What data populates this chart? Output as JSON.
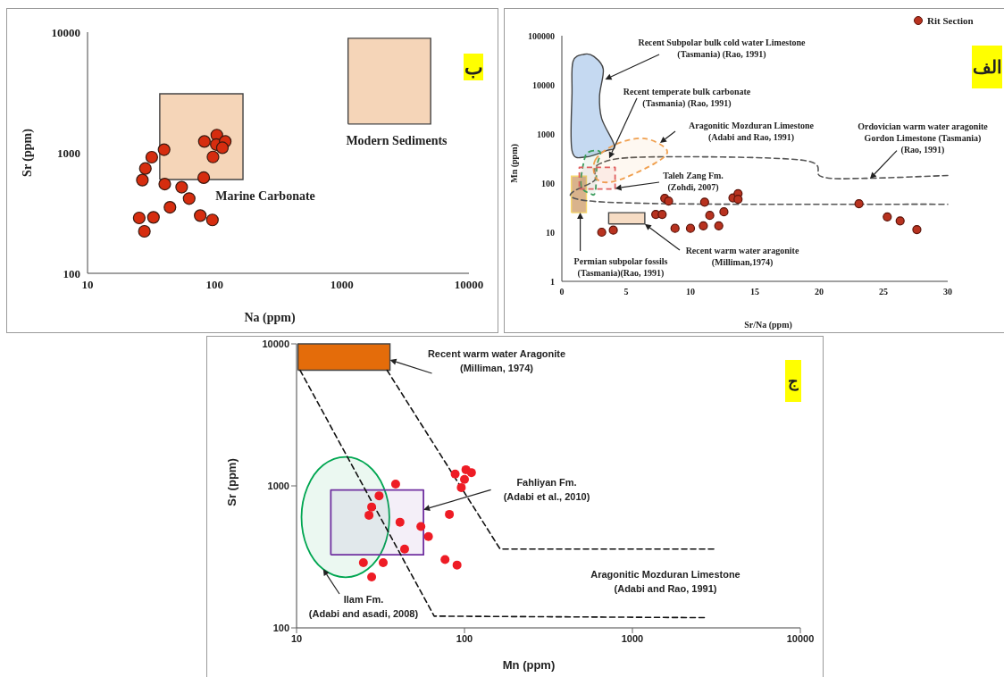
{
  "chart_data": [
    {
      "type": "scatter",
      "xlabel": "Na (ppm)",
      "ylabel": "Sr (ppm)",
      "log": "xy",
      "xlim": [
        10,
        10000
      ],
      "ylim": [
        100,
        10000
      ],
      "xticks": [
        10,
        100,
        1000,
        10000
      ],
      "yticks": [
        100,
        1000,
        10000
      ],
      "annotations": [
        "ب",
        "Marine Carbonate",
        "Modern Sediments"
      ],
      "series": [
        {
          "type": "area",
          "color": "#f5d5b8",
          "x": [
            37,
            167,
            167,
            37,
            37
          ],
          "values": [
            600,
            600,
            3080,
            3080,
            600
          ]
        },
        {
          "type": "area",
          "color": "#f5d5b8",
          "x": [
            1120,
            5000,
            5000,
            1120,
            1120
          ],
          "values": [
            1730,
            1730,
            8900,
            8900,
            1730
          ]
        },
        {
          "type": "scatter",
          "marker": "circle",
          "color": "#d62d0f",
          "x": [
            25.5,
            28,
            33,
            27,
            28.5,
            32,
            40,
            40.5,
            44.5,
            55,
            63,
            77,
            96,
            82,
            83,
            104,
            103,
            121,
            115,
            97
          ],
          "values": [
            288,
            223,
            291,
            593,
            740,
            918,
            1060,
            550,
            353,
            518,
            417,
            301,
            277,
            621,
            1240,
            1400,
            1170,
            1240,
            1100,
            922
          ]
        }
      ]
    },
    {
      "type": "scatter",
      "xlabel": "Sr/Na (ppm)",
      "ylabel": "Mn (ppm)",
      "log": "y",
      "xlim": [
        0,
        30
      ],
      "ylim": [
        1,
        100000
      ],
      "xticks": [
        0,
        5,
        10,
        15,
        20,
        25,
        30
      ],
      "yticks": [
        1,
        10,
        100,
        1000,
        10000,
        100000
      ],
      "legend": "top right",
      "annotations": [
        "الف",
        {
          "text": "Recent Subpolar bulk cold water Limestone\n(Tasmania) (Rao, 1991)",
          "x": 3.37,
          "y": 12900
        },
        {
          "text": "Recent temperate bulk carbonate\n(Tasmania) (Rao, 1991)",
          "x": 3.68,
          "y": 320
        },
        "Aragonitic Mozduran Limestone\n(Adabi and Rao, 1991)",
        {
          "text": "Ordovician warm water aragonite\nGordon Limestone (Tasmania)\n(Rao, 1991)",
          "x": 23.96,
          "y": 123
        },
        {
          "text": "Taleh Zang Fm.\n(Zohdi, 2007)",
          "x": 4.14,
          "y": 78
        },
        {
          "text": "Recent warm water aragonite\n(Milliman,1974)",
          "x": 6.45,
          "y": 14.7
        },
        {
          "text": "Permian subpolar fossils\n(Tasmania)(Rao, 1991)",
          "x": 1.43,
          "y": 25
        }
      ],
      "series": [
        {
          "type": "area",
          "color": "#c5d9f1",
          "x": [
            1.74,
            2.48,
            3.22,
            2.93,
            3.1,
            4.09,
            3.47,
            1.86,
            0.79,
            0.79,
            0.87,
            1.74
          ],
          "values": [
            42000,
            38000,
            21000,
            5900,
            2050,
            575,
            460,
            340,
            460,
            6800,
            30000,
            42000
          ]
        },
        {
          "type": "area",
          "color": "#d9b38c",
          "x": [
            0.74,
            1.91,
            1.91,
            0.74,
            0.74
          ],
          "values": [
            25,
            25,
            138,
            138,
            25
          ]
        },
        {
          "type": "area",
          "color": "#f6dcc4",
          "x": [
            3.64,
            6.45,
            6.45,
            3.64,
            3.64
          ],
          "values": [
            14.7,
            14.7,
            25,
            25,
            14.7
          ]
        },
        {
          "type": "line",
          "color": "#555555",
          "line_style": "dashed",
          "x": [
            30,
            23.56,
            20.2,
            18.6,
            6.69,
            2.98,
            2.6,
            2.73,
            30
          ],
          "values": [
            143,
            125,
            135,
            295,
            340,
            250,
            120,
            42,
            37
          ]
        },
        {
          "type": "area",
          "color": "#3a9d5d",
          "line_style": "dashed",
          "x": [
            2.1,
            2.98,
            2.73,
            2.6,
            2.23,
            1.49,
            1.74,
            2.1
          ],
          "values": [
            430,
            430,
            220,
            66,
            61,
            89,
            295,
            430
          ]
        },
        {
          "type": "area",
          "color": "#f0a050",
          "line_style": "dashed",
          "x": [
            2.6,
            4.22,
            6.45,
            8.18,
            7.2,
            4.22,
            2.73,
            2.6
          ],
          "values": [
            295,
            620,
            810,
            460,
            250,
            111,
            120,
            295
          ]
        },
        {
          "type": "area",
          "color": "#e06060",
          "line_style": "dashed",
          "x": [
            1.36,
            4.14,
            4.14,
            1.36,
            1.36
          ],
          "values": [
            76,
            76,
            210,
            210,
            76
          ]
        },
        {
          "type": "scatter",
          "name": "Rit  Section",
          "marker": "circle",
          "color": "#b8321f",
          "x": [
            3.1,
            4,
            7.3,
            7.8,
            8,
            8.3,
            8.8,
            10,
            11,
            11.1,
            11.5,
            12.2,
            12.6,
            13.3,
            13.7,
            13.7,
            23.1,
            25.3,
            26.3,
            27.6
          ],
          "values": [
            10,
            11,
            23,
            23,
            49,
            43,
            12,
            12,
            13.5,
            41,
            22,
            13.5,
            26,
            50,
            61,
            47,
            38,
            20.5,
            17,
            11.3
          ]
        }
      ]
    },
    {
      "type": "scatter",
      "xlabel": "Mn (ppm)",
      "ylabel": "Sr (ppm)",
      "log": "xy",
      "xlim": [
        10,
        10000
      ],
      "ylim": [
        100,
        10000
      ],
      "xticks": [
        10,
        100,
        1000,
        10000
      ],
      "yticks": [
        100,
        1000,
        10000
      ],
      "annotations": [
        "ج",
        {
          "text": "Recent warm water Aragonite\n(Milliman, 1974)",
          "x": 36,
          "y": 7700
        },
        {
          "text": "Fahliyan Fm.\n(Adabi et al., 2010)",
          "x": 57,
          "y": 680
        },
        "Aragonitic Mozduran Limestone\n(Adabi and Rao, 1991)",
        {
          "text": "Ilam Fm.\n(Adabi and asadi, 2008)",
          "x": 14.4,
          "y": 259
        }
      ],
      "series": [
        {
          "type": "area",
          "color": "#e46c0a",
          "x": [
            10.2,
            36,
            36,
            10.2,
            10.2
          ],
          "values": [
            6520,
            6520,
            10000,
            10000,
            6520
          ]
        },
        {
          "type": "area",
          "color": "#00a651",
          "x": [
            35.7,
            33,
            26.5,
            19.6,
            14.4,
            11.6,
            10.7,
            11.6,
            14.4,
            19.6,
            26.5,
            33,
            35.7
          ],
          "values": [
            603,
            978,
            1400,
            1600,
            1400,
            978,
            603,
            368,
            259,
            227,
            259,
            368,
            603
          ]
        },
        {
          "type": "area",
          "color": "#7030a0",
          "x": [
            16,
            57,
            57,
            16,
            16
          ],
          "values": [
            327,
            327,
            935,
            935,
            327
          ]
        },
        {
          "type": "line",
          "color": "#111111",
          "line_style": "dashed",
          "x": [
            10.5,
            66,
            2740
          ],
          "values": [
            6520,
            121,
            118
          ]
        },
        {
          "type": "line",
          "color": "#111111",
          "line_style": "dashed",
          "x": [
            34.6,
            163,
            3180
          ],
          "values": [
            6520,
            359,
            359
          ]
        },
        {
          "type": "scatter",
          "marker": "circle",
          "color": "#ee1c25",
          "x": [
            25,
            28,
            32.8,
            27,
            28,
            31,
            38.9,
            41.3,
            44,
            55,
            61,
            76.6,
            90.3,
            81.3,
            88,
            102,
            100,
            110,
            95.7
          ],
          "values": [
            288,
            228,
            288,
            621,
            710,
            851,
            1030,
            555,
            359,
            518,
            440,
            303,
            277,
            630,
            1210,
            1300,
            1110,
            1240,
            973
          ]
        }
      ]
    }
  ]
}
